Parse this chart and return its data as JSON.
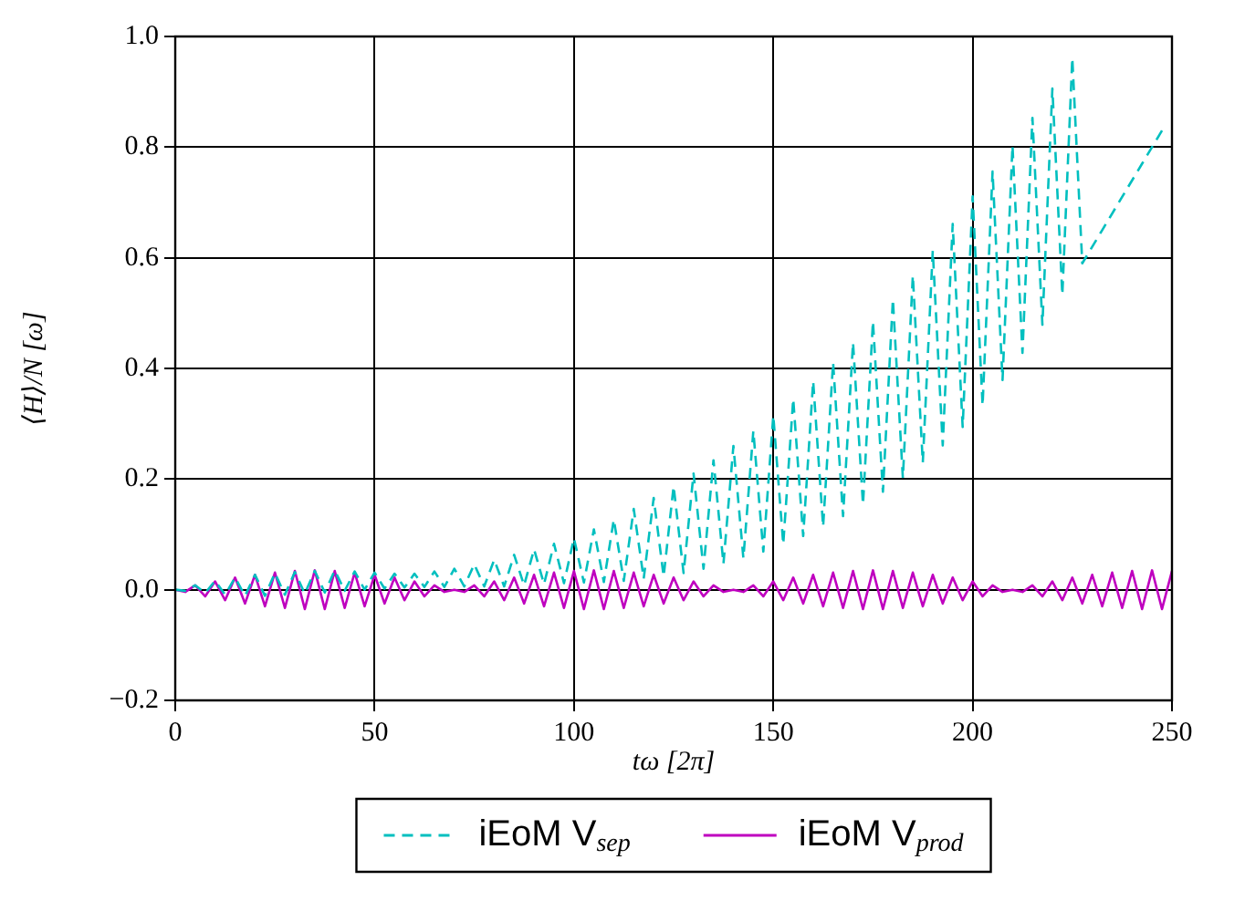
{
  "chart_data": {
    "type": "line",
    "xlabel": "tω [2π]",
    "ylabel": "⟨H⟩/N [ω]",
    "x": [
      0,
      2.5,
      5,
      7.5,
      10,
      12.5,
      15,
      17.5,
      20,
      22.5,
      25,
      27.5,
      30,
      32.5,
      35,
      37.5,
      40,
      42.5,
      45,
      47.5,
      50,
      52.5,
      55,
      57.5,
      60,
      62.5,
      65,
      67.5,
      70,
      72.5,
      75,
      77.5,
      80,
      82.5,
      85,
      87.5,
      90,
      92.5,
      95,
      97.5,
      100,
      102.5,
      105,
      107.5,
      110,
      112.5,
      115,
      117.5,
      120,
      122.5,
      125,
      127.5,
      130,
      132.5,
      135,
      137.5,
      140,
      142.5,
      145,
      147.5,
      150,
      152.5,
      155,
      157.5,
      160,
      162.5,
      165,
      167.5,
      170,
      172.5,
      175,
      177.5,
      180,
      182.5,
      185,
      187.5,
      190,
      192.5,
      195,
      197.5,
      200,
      202.5,
      205,
      207.5,
      210,
      212.5,
      215,
      217.5,
      220,
      222.5,
      225,
      227.5,
      230,
      232.5,
      235,
      237.5,
      240,
      242.5,
      245,
      247.5,
      250
    ],
    "series": [
      {
        "name": "iEoM V$_{sep}$",
        "color": "#00bfbf",
        "line_style": "dashed",
        "values": [
          0,
          -0.002,
          0.008,
          -0.006,
          0.016,
          -0.009,
          0.022,
          -0.011,
          0.027,
          -0.011,
          0.03,
          -0.009,
          0.032,
          -0.007,
          0.034,
          -0.005,
          0.035,
          -0.002,
          0.033,
          0,
          0.031,
          0.002,
          0.029,
          0.004,
          0.029,
          0.005,
          0.033,
          0.005,
          0.038,
          0.006,
          0.046,
          0.006,
          0.054,
          0.006,
          0.063,
          0.008,
          0.073,
          0.01,
          0.083,
          0.012,
          0.093,
          0.013,
          0.109,
          0.014,
          0.127,
          0.016,
          0.146,
          0.02,
          0.166,
          0.024,
          0.187,
          0.03,
          0.21,
          0.038,
          0.234,
          0.047,
          0.26,
          0.057,
          0.287,
          0.069,
          0.315,
          0.082,
          0.345,
          0.097,
          0.377,
          0.114,
          0.411,
          0.133,
          0.447,
          0.154,
          0.485,
          0.177,
          0.525,
          0.202,
          0.568,
          0.23,
          0.613,
          0.261,
          0.661,
          0.294,
          0.711,
          0.333,
          0.756,
          0.379,
          0.803,
          0.428,
          0.853,
          0.479,
          0.906,
          0.533,
          0.961,
          0.59,
          null,
          0.65,
          null,
          0.71,
          null,
          0.77,
          null,
          0.83,
          null
        ]
      },
      {
        "name": "iEoM V$_{prod}$",
        "color": "#bf00bf",
        "line_style": "solid",
        "values": [
          0,
          -0.004,
          0.008,
          -0.012,
          0.015,
          -0.019,
          0.022,
          -0.025,
          0.027,
          -0.03,
          0.031,
          -0.033,
          0.034,
          -0.035,
          0.035,
          -0.035,
          0.034,
          -0.033,
          0.031,
          -0.03,
          0.027,
          -0.025,
          0.022,
          -0.019,
          0.015,
          -0.012,
          0.008,
          -0.004,
          0,
          -0.004,
          0.008,
          -0.012,
          0.015,
          -0.019,
          0.022,
          -0.025,
          0.027,
          -0.03,
          0.031,
          -0.033,
          0.034,
          -0.035,
          0.035,
          -0.035,
          0.034,
          -0.033,
          0.031,
          -0.03,
          0.027,
          -0.025,
          0.022,
          -0.019,
          0.015,
          -0.012,
          0.008,
          -0.004,
          0,
          -0.004,
          0.008,
          -0.012,
          0.015,
          -0.019,
          0.022,
          -0.025,
          0.027,
          -0.03,
          0.031,
          -0.033,
          0.034,
          -0.035,
          0.035,
          -0.035,
          0.034,
          -0.033,
          0.031,
          -0.03,
          0.027,
          -0.025,
          0.022,
          -0.019,
          0.015,
          -0.012,
          0.008,
          -0.004,
          0,
          -0.004,
          0.008,
          -0.012,
          0.015,
          -0.019,
          0.022,
          -0.025,
          0.027,
          -0.03,
          0.031,
          -0.033,
          0.034,
          -0.035,
          0.035,
          -0.035,
          0.034
        ]
      }
    ],
    "xlim": [
      0,
      250
    ],
    "xticks": [
      0,
      50,
      100,
      150,
      200,
      250
    ],
    "ylim": [
      -0.2,
      1.0
    ],
    "yticks": [
      {
        "value": -0.2,
        "label": "−0.2"
      },
      {
        "value": 0,
        "label": "0.0"
      },
      {
        "value": 0.2,
        "label": "0.2"
      },
      {
        "value": 0.4,
        "label": "0.4"
      },
      {
        "value": 0.6,
        "label": "0.6"
      },
      {
        "value": 0.8,
        "label": "0.8"
      },
      {
        "value": 1.0,
        "label": "1.0"
      }
    ],
    "grid": true,
    "legend": "bottom",
    "marker": "none"
  }
}
